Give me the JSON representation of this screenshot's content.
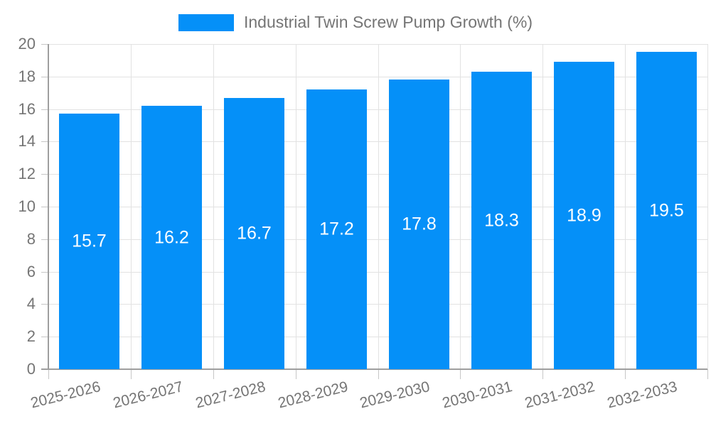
{
  "chart_data": {
    "type": "bar",
    "title": "",
    "legend": {
      "label": "Industrial Twin Screw Pump Growth (%)",
      "position": "top-center"
    },
    "categories": [
      "2025-2026",
      "2026-2027",
      "2027-2028",
      "2028-2029",
      "2029-2030",
      "2030-2031",
      "2031-2032",
      "2032-2033"
    ],
    "values": [
      15.7,
      16.2,
      16.7,
      17.2,
      17.8,
      18.3,
      18.9,
      19.5
    ],
    "value_labels": [
      "15.7",
      "16.2",
      "16.7",
      "17.2",
      "17.8",
      "18.3",
      "18.9",
      "19.5"
    ],
    "xlabel": "",
    "ylabel": "",
    "ylim": [
      0,
      20
    ],
    "yticks": [
      0,
      2,
      4,
      6,
      8,
      10,
      12,
      14,
      16,
      18,
      20
    ],
    "grid": true,
    "colors": {
      "bar": "#0590f8",
      "bar_label": "#ffffff",
      "grid": "#e2e2e2",
      "axis": "#9e9e9e",
      "tick": "#c6c6c6",
      "tick_label": "#757575",
      "legend_text": "#757575",
      "background": "#ffffff"
    }
  }
}
